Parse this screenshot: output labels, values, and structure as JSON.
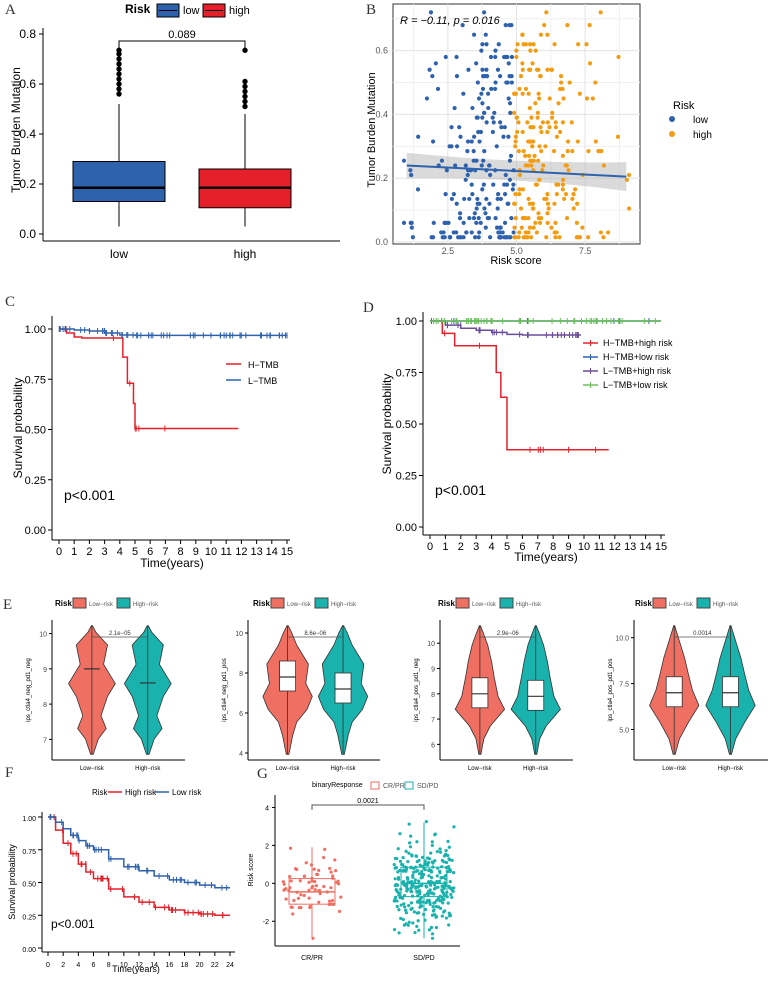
{
  "colors": {
    "blue": "#2f62ad",
    "red": "#e5202a",
    "orange": "#f39c12",
    "green": "#6abf5a",
    "purple": "#6a4c9c",
    "salmon": "#ef6f62",
    "teal": "#19b2ad"
  },
  "panels": {
    "A": "A",
    "B": "B",
    "C": "C",
    "D": "D",
    "E": "E",
    "F": "F",
    "G": "G"
  },
  "chart_data": [
    {
      "panel": "A",
      "type": "box",
      "legend_title": "Risk",
      "legend": [
        "low",
        "high"
      ],
      "ylabel": "Tumor Burden Mutation",
      "categories": [
        "low",
        "high"
      ],
      "yticks": [
        "0.0",
        "0.2",
        "0.4",
        "0.6",
        "0.8"
      ],
      "ylim": [
        0,
        0.8
      ],
      "boxes": [
        {
          "q1": 0.13,
          "median": 0.185,
          "q3": 0.29,
          "lo": 0.03,
          "hi": 0.52,
          "outliers": [
            0.56,
            0.58,
            0.6,
            0.62,
            0.64,
            0.66,
            0.68,
            0.7,
            0.72,
            0.735
          ]
        },
        {
          "q1": 0.105,
          "median": 0.185,
          "q3": 0.26,
          "lo": 0.03,
          "hi": 0.48,
          "outliers": [
            0.51,
            0.53,
            0.55,
            0.57,
            0.59,
            0.61,
            0.735
          ]
        }
      ],
      "pvalue": "0.089"
    },
    {
      "panel": "B",
      "type": "scatter",
      "annotation": "R = −0.11, p = 0.016",
      "xlabel": "Risk score",
      "ylabel": "Tumor Burden Mutation",
      "xticks": [
        "2.5",
        "5.0",
        "7.5"
      ],
      "yticks": [
        "0.0",
        "0.2",
        "0.4",
        "0.6"
      ],
      "xlim": [
        0.5,
        9.5
      ],
      "ylim": [
        0,
        0.74
      ],
      "legend_title": "Risk",
      "legend": [
        "low",
        "high"
      ],
      "fit": {
        "x": [
          1,
          9
        ],
        "y": [
          0.24,
          0.205
        ]
      }
    },
    {
      "panel": "C",
      "type": "line",
      "ylabel": "Survival probability",
      "xlabel": "Time(years)",
      "xticks": [
        "0",
        "1",
        "2",
        "3",
        "4",
        "5",
        "6",
        "7",
        "8",
        "9",
        "10",
        "11",
        "12",
        "13",
        "14",
        "15"
      ],
      "yticks": [
        "0.00",
        "0.25",
        "0.50",
        "0.75",
        "1.00"
      ],
      "series": [
        {
          "name": "H−TMB",
          "x": [
            0,
            0.5,
            1,
            1.5,
            4.2,
            4.5,
            4.9,
            5.0,
            11.8
          ],
          "y": [
            1,
            0.98,
            0.96,
            0.955,
            0.86,
            0.73,
            0.63,
            0.505,
            0.505
          ]
        },
        {
          "name": "L−TMB",
          "x": [
            0,
            1,
            2,
            3,
            4,
            5,
            15
          ],
          "y": [
            1,
            0.995,
            0.99,
            0.98,
            0.97,
            0.968,
            0.968
          ]
        }
      ],
      "pvalue": "p<0.001"
    },
    {
      "panel": "D",
      "type": "line",
      "ylabel": "Survival probability",
      "xlabel": "Time(years)",
      "xticks": [
        "0",
        "1",
        "2",
        "3",
        "4",
        "5",
        "6",
        "7",
        "8",
        "9",
        "10",
        "11",
        "12",
        "13",
        "14",
        "15"
      ],
      "yticks": [
        "0.00",
        "0.25",
        "0.50",
        "0.75",
        "1.00"
      ],
      "series": [
        {
          "name": "H−TMB+high risk",
          "x": [
            0,
            0.8,
            1.6,
            4.0,
            4.3,
            4.6,
            5.0,
            11.6
          ],
          "y": [
            1,
            0.94,
            0.88,
            0.88,
            0.75,
            0.63,
            0.375,
            0.375
          ]
        },
        {
          "name": "H−TMB+low risk",
          "x": [
            0,
            15
          ],
          "y": [
            1,
            1
          ]
        },
        {
          "name": "L−TMB+high risk",
          "x": [
            0,
            1,
            2,
            3,
            4,
            5,
            6,
            9.8
          ],
          "y": [
            1,
            0.98,
            0.965,
            0.955,
            0.945,
            0.935,
            0.932,
            0.932
          ]
        },
        {
          "name": "L−TMB+low risk",
          "x": [
            0,
            15
          ],
          "y": [
            1,
            1
          ]
        }
      ],
      "pvalue": "p<0.001"
    },
    {
      "panel": "E1",
      "type": "violin",
      "legend_title": "Risk",
      "legend": [
        "Low−risk",
        "High−risk"
      ],
      "ylabel": "ips_ctla4_neg_pd1_neg",
      "categories": [
        "Low−risk",
        "High−risk"
      ],
      "yticks": [
        "7",
        "8",
        "9",
        "10"
      ],
      "ylim": [
        6.5,
        10.3
      ],
      "pvalue": "2.1e−05",
      "medians": [
        9.0,
        8.6
      ]
    },
    {
      "panel": "E2",
      "type": "violin",
      "legend_title": "Risk",
      "legend": [
        "Low−risk",
        "High−risk"
      ],
      "ylabel": "ips_ctla4_neg_pd1_pos",
      "categories": [
        "Low−risk",
        "High−risk"
      ],
      "yticks": [
        "4",
        "6",
        "8",
        "10"
      ],
      "ylim": [
        3.8,
        10.5
      ],
      "pvalue": "8.6e−06",
      "medians": [
        7.8,
        7.2
      ]
    },
    {
      "panel": "E3",
      "type": "violin",
      "legend_title": "Risk",
      "legend": [
        "Low−risk",
        "High−risk"
      ],
      "ylabel": "ips_ctla4_pos_pd1_neg",
      "categories": [
        "Low−risk",
        "High−risk"
      ],
      "yticks": [
        "6",
        "7",
        "8",
        "9",
        "10"
      ],
      "ylim": [
        5.5,
        10.8
      ],
      "pvalue": "2.9e−06",
      "medians": [
        8.0,
        7.9
      ]
    },
    {
      "panel": "E4",
      "type": "violin",
      "legend_title": "Risk",
      "legend": [
        "Low−risk",
        "High−risk"
      ],
      "ylabel": "ips_ctla4_pos_pd1_pos",
      "categories": [
        "Low−risk",
        "High−risk"
      ],
      "yticks": [
        "5.0",
        "7.5",
        "10.0"
      ],
      "ylim": [
        3.5,
        10.8
      ],
      "pvalue": "0.0014",
      "medians": [
        7.0,
        7.0
      ]
    },
    {
      "panel": "F",
      "type": "line",
      "legend_title": "Risk",
      "legend": [
        "High risk",
        "Low risk"
      ],
      "ylabel": "Survival probability",
      "xlabel": "Time(years)",
      "xticks": [
        "0",
        "2",
        "4",
        "6",
        "8",
        "10",
        "12",
        "14",
        "16",
        "18",
        "20",
        "22",
        "24"
      ],
      "yticks": [
        "0.00",
        "0.25",
        "0.50",
        "0.75",
        "1.00"
      ],
      "series": [
        {
          "name": "High risk",
          "x": [
            0,
            1,
            2,
            3,
            4,
            5,
            6,
            8,
            10,
            12,
            14,
            16,
            18,
            20,
            22,
            24
          ],
          "y": [
            1,
            0.9,
            0.8,
            0.72,
            0.64,
            0.58,
            0.53,
            0.45,
            0.39,
            0.35,
            0.31,
            0.29,
            0.27,
            0.26,
            0.25,
            0.25
          ]
        },
        {
          "name": "Low risk",
          "x": [
            0,
            1,
            2,
            3,
            4,
            5,
            6,
            8,
            10,
            12,
            14,
            16,
            18,
            20,
            22,
            24
          ],
          "y": [
            1,
            0.96,
            0.91,
            0.86,
            0.82,
            0.78,
            0.75,
            0.68,
            0.62,
            0.59,
            0.55,
            0.52,
            0.5,
            0.48,
            0.46,
            0.46
          ]
        }
      ],
      "pvalue": "p<0.001"
    },
    {
      "panel": "G",
      "type": "box",
      "legend_title": "binaryResponse",
      "legend": [
        "CR/PR",
        "SD/PD"
      ],
      "ylabel": "Risk score",
      "categories": [
        "CR/PR",
        "SD/PD"
      ],
      "yticks": [
        "-2",
        "0",
        "2",
        "4"
      ],
      "ylim": [
        -3.2,
        4.5
      ],
      "pvalue": "0.0021",
      "boxes": [
        {
          "q1": -1.1,
          "median": -0.45,
          "q3": 0.25,
          "lo": -2.9,
          "hi": 1.9
        },
        {
          "q1": -0.7,
          "median": 0.0,
          "q3": 0.85,
          "lo": -2.9,
          "hi": 3.2
        }
      ]
    }
  ]
}
